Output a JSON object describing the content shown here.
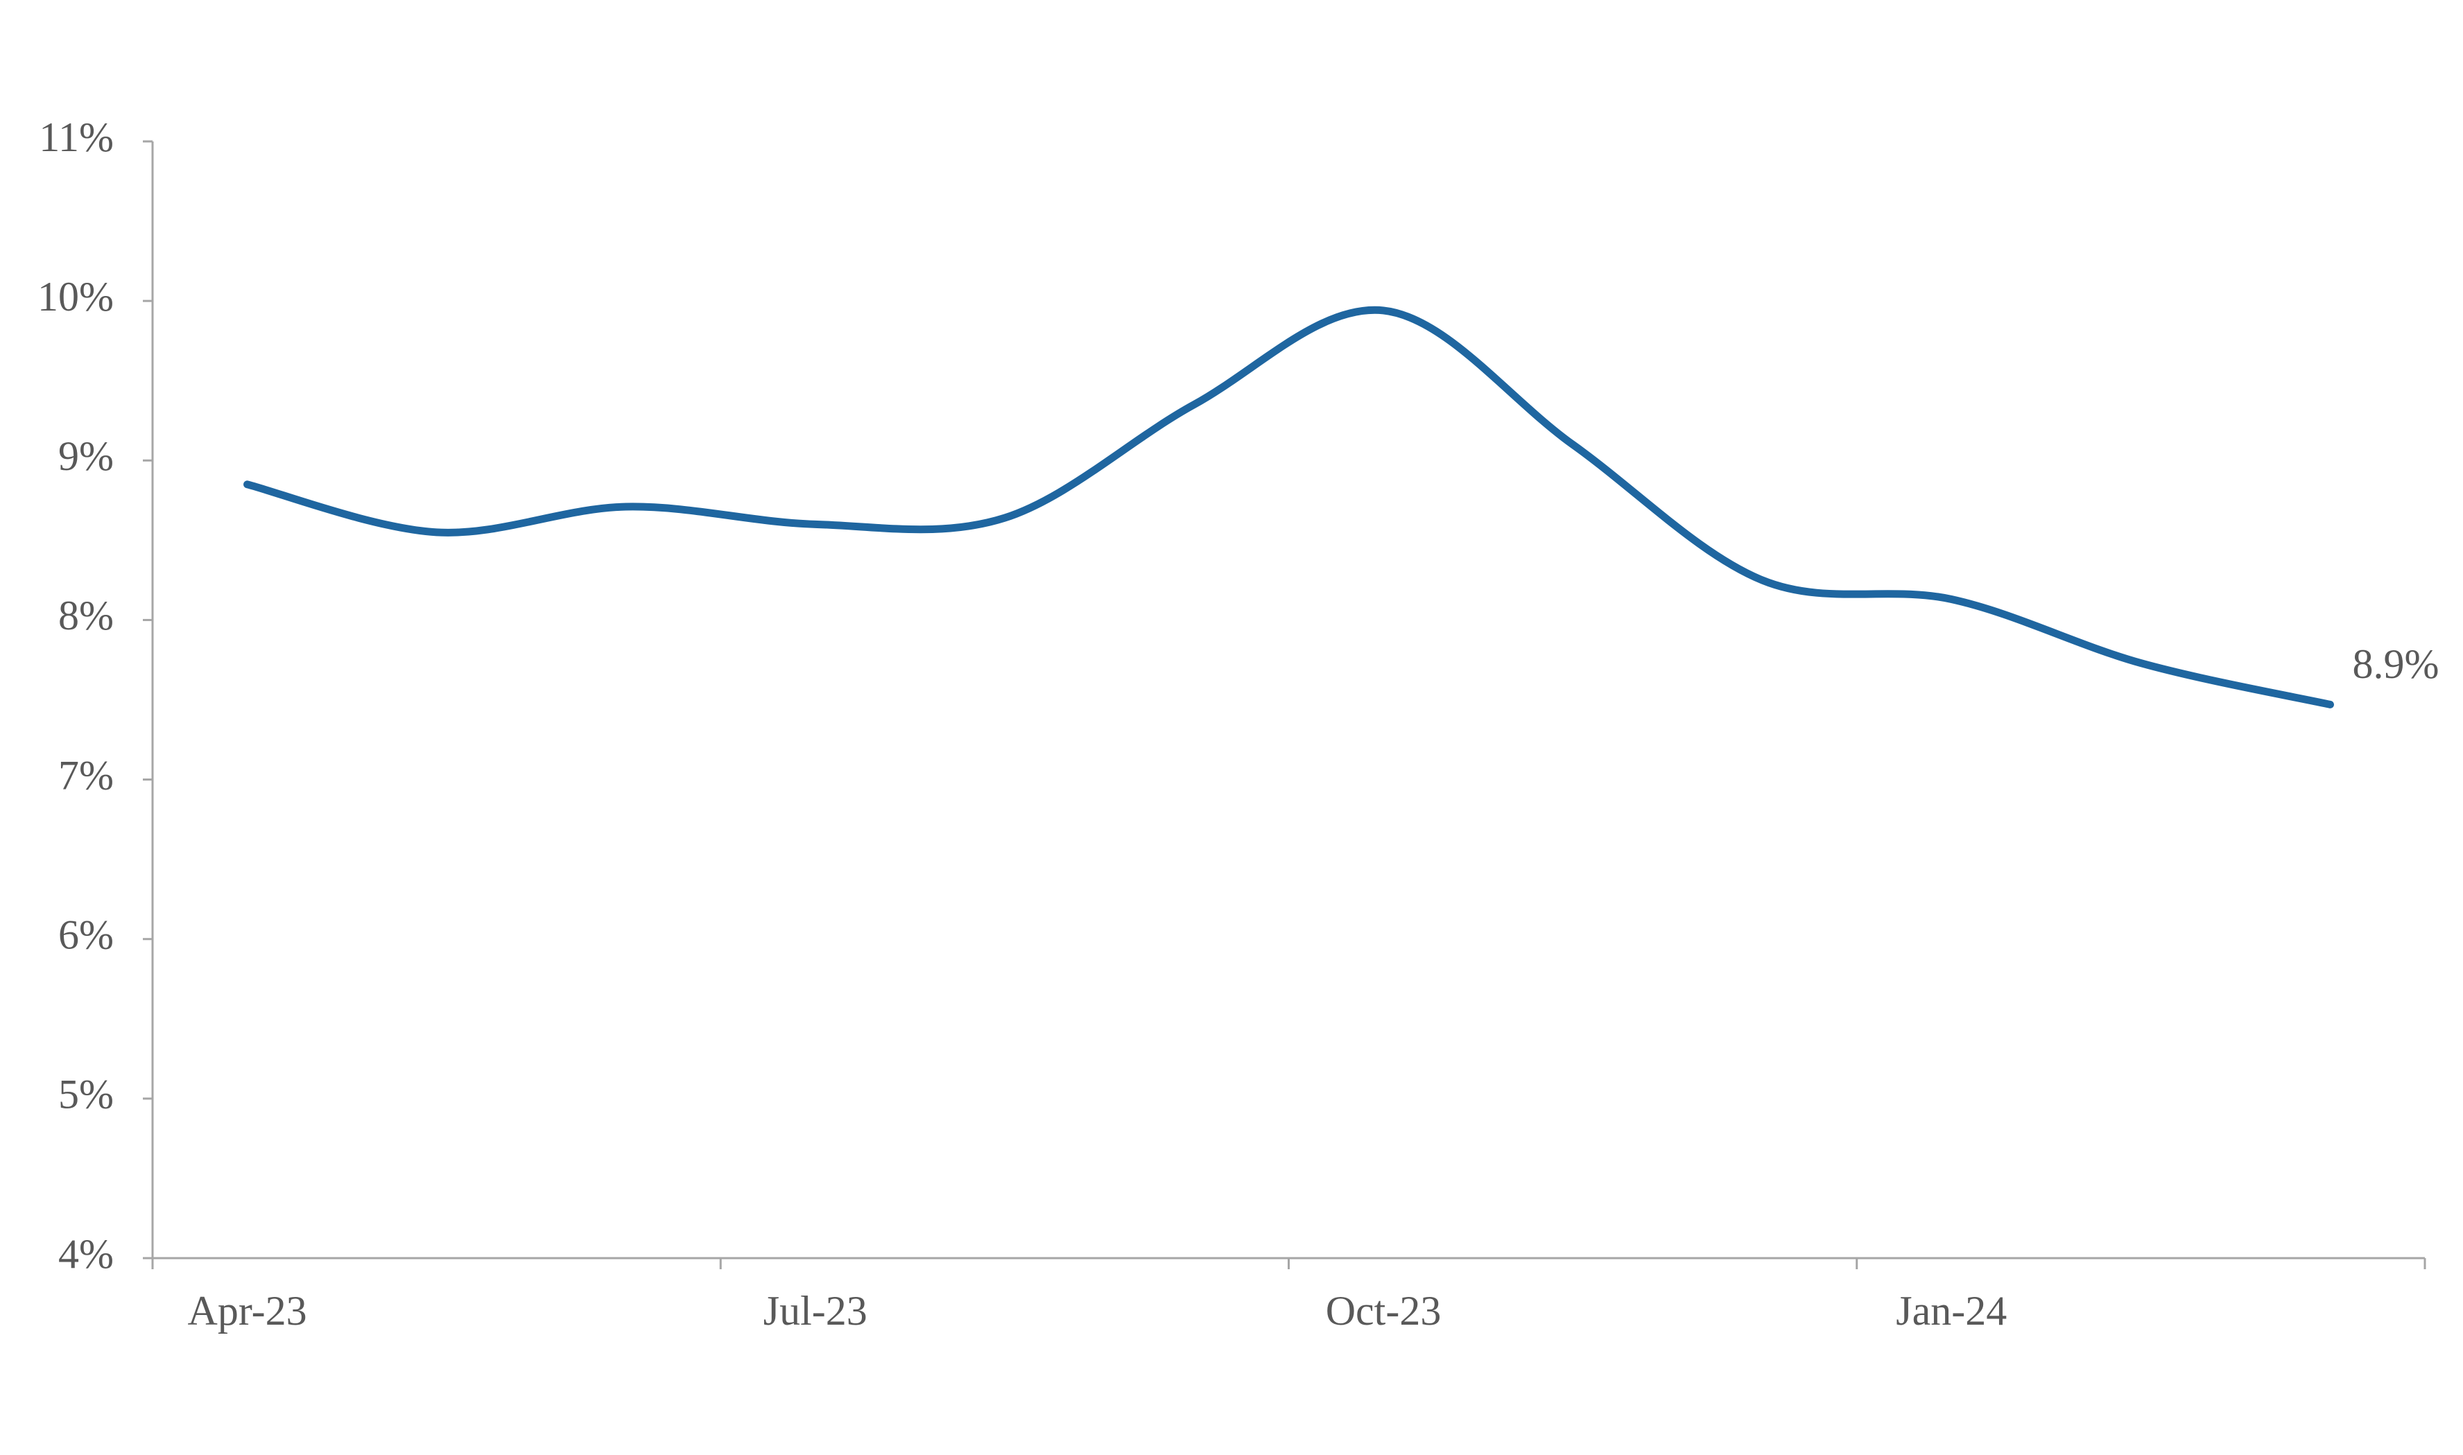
{
  "chart_data": {
    "type": "line",
    "categories": [
      "Apr-23",
      null,
      null,
      "Jul-23",
      null,
      null,
      "Oct-23",
      null,
      null,
      "Jan-24",
      null,
      null
    ],
    "series": [
      {
        "color": "#1f66a0",
        "values": [
          8.85,
          8.55,
          8.71,
          8.6,
          8.64,
          9.35,
          9.94,
          9.1,
          8.25,
          8.13,
          7.73,
          7.47
        ]
      }
    ],
    "ylim": [
      4,
      11
    ],
    "yticks": [
      {
        "value": 4,
        "label": "4%"
      },
      {
        "value": 5,
        "label": "5%"
      },
      {
        "value": 6,
        "label": "6%"
      },
      {
        "value": 7,
        "label": "7%"
      },
      {
        "value": 8,
        "label": "8%"
      },
      {
        "value": 9,
        "label": "9%"
      },
      {
        "value": 10,
        "label": "10%"
      },
      {
        "value": 11,
        "label": "11%"
      }
    ],
    "annotation": "8.9%"
  }
}
